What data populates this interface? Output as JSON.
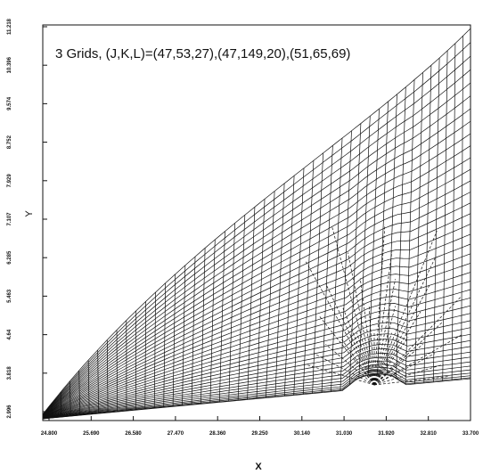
{
  "chart_data": {
    "type": "mesh",
    "title": "3 Grids, (J,K,L)=(47,53,27),(47,149,20),(51,65,69)",
    "xlabel": "X",
    "ylabel": "Y",
    "xlim": [
      24.8,
      33.7
    ],
    "ylim": [
      2.996,
      11.218
    ],
    "xticks": [
      {
        "value": 24.8,
        "label": "24.800"
      },
      {
        "value": 25.69,
        "label": "25.690"
      },
      {
        "value": 26.58,
        "label": "26.580"
      },
      {
        "value": 27.47,
        "label": "27.470"
      },
      {
        "value": 28.36,
        "label": "28.360"
      },
      {
        "value": 29.25,
        "label": "29.250"
      },
      {
        "value": 30.14,
        "label": "30.140"
      },
      {
        "value": 31.03,
        "label": "31.030"
      },
      {
        "value": 31.92,
        "label": "31.920"
      },
      {
        "value": 32.81,
        "label": "32.810"
      },
      {
        "value": 33.7,
        "label": "33.700"
      }
    ],
    "yticks": [
      2.996,
      3.818,
      4.64,
      5.463,
      6.285,
      7.107,
      7.929,
      8.752,
      9.574,
      10.396,
      11.218
    ]
  }
}
